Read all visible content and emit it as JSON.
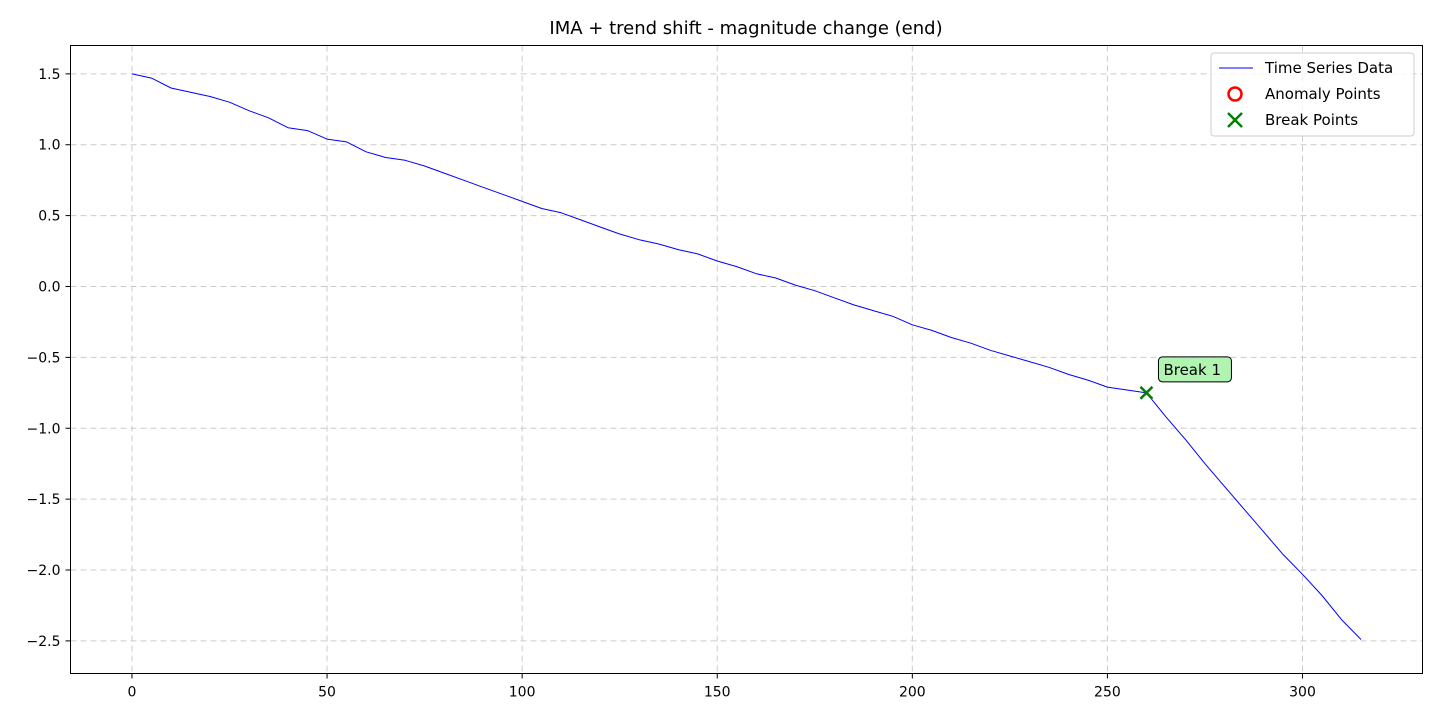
{
  "chart_data": {
    "type": "line",
    "title": "IMA + trend shift - magnitude change (end)",
    "xlabel": "",
    "ylabel": "",
    "xlim": [
      -15.75,
      330.75
    ],
    "ylim": [
      -2.73,
      1.7
    ],
    "xticks": [
      0,
      50,
      100,
      150,
      200,
      250,
      300
    ],
    "yticks": [
      1.5,
      1.0,
      0.5,
      0.0,
      -0.5,
      -1.0,
      -1.5,
      -2.0,
      -2.5
    ],
    "xtick_labels": [
      "0",
      "50",
      "100",
      "150",
      "200",
      "250",
      "300"
    ],
    "ytick_labels": [
      "1.5",
      "1.0",
      "0.5",
      "0.0",
      "−0.5",
      "−1.0",
      "−1.5",
      "−2.0",
      "−2.5"
    ],
    "grid": true,
    "legend_position": "top-right",
    "series": [
      {
        "name": "Time Series Data",
        "color": "#0000ff",
        "x": [
          0,
          5,
          10,
          15,
          20,
          25,
          30,
          35,
          40,
          45,
          50,
          55,
          60,
          65,
          70,
          75,
          80,
          85,
          90,
          95,
          100,
          105,
          110,
          115,
          120,
          125,
          130,
          135,
          140,
          145,
          150,
          155,
          160,
          165,
          170,
          175,
          180,
          185,
          190,
          195,
          200,
          205,
          210,
          215,
          220,
          225,
          230,
          235,
          240,
          245,
          250,
          255,
          260,
          265,
          270,
          275,
          280,
          285,
          290,
          295,
          300,
          305,
          310,
          315
        ],
        "y": [
          1.5,
          1.47,
          1.4,
          1.37,
          1.34,
          1.3,
          1.24,
          1.19,
          1.12,
          1.1,
          1.04,
          1.02,
          0.95,
          0.91,
          0.89,
          0.85,
          0.8,
          0.75,
          0.7,
          0.65,
          0.6,
          0.55,
          0.52,
          0.47,
          0.42,
          0.37,
          0.33,
          0.3,
          0.26,
          0.23,
          0.18,
          0.14,
          0.09,
          0.06,
          0.01,
          -0.03,
          -0.08,
          -0.13,
          -0.17,
          -0.21,
          -0.27,
          -0.31,
          -0.36,
          -0.4,
          -0.45,
          -0.49,
          -0.53,
          -0.57,
          -0.62,
          -0.66,
          -0.71,
          -0.73,
          -0.75,
          -0.92,
          -1.08,
          -1.25,
          -1.41,
          -1.57,
          -1.73,
          -1.89,
          -2.03,
          -2.18,
          -2.35,
          -2.49
        ]
      }
    ],
    "anomaly_points": {
      "name": "Anomaly Points",
      "color": "#ff0000",
      "x": [],
      "y": []
    },
    "break_points": {
      "name": "Break Points",
      "color": "#008000",
      "x": [
        260
      ],
      "y": [
        -0.75
      ]
    },
    "annotations": [
      {
        "text": "Break 1",
        "x": 260,
        "y": -0.75
      }
    ]
  }
}
